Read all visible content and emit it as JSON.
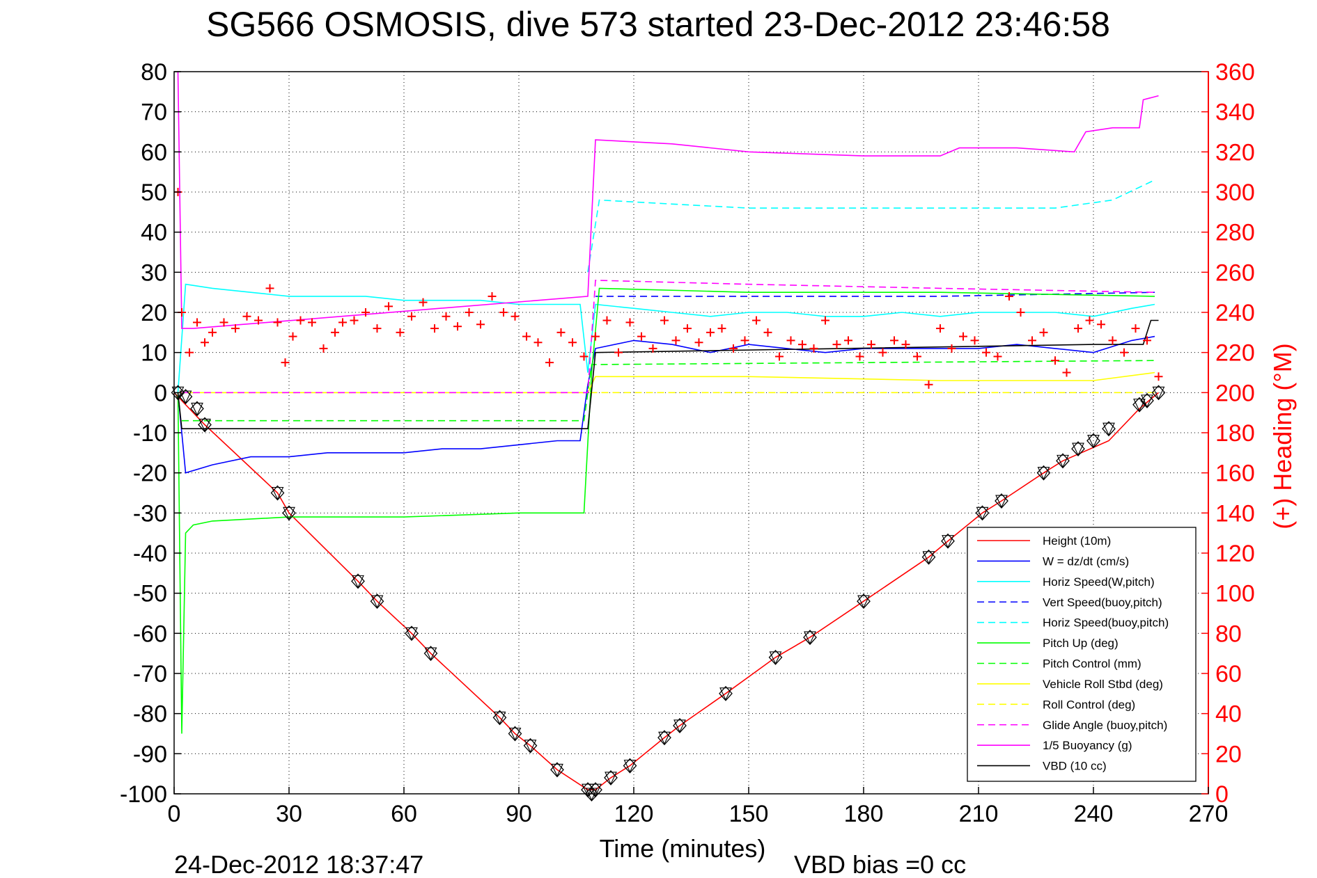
{
  "chart_data": {
    "type": "line",
    "title": "SG566 OSMOSIS, dive 573 started 23-Dec-2012 23:46:58",
    "xlabel": "Time (minutes)",
    "ylabel_right": "(+) Heading (°M)",
    "xlim": [
      0,
      270
    ],
    "ylim": [
      -100,
      80
    ],
    "ylim_right": [
      0,
      360
    ],
    "x_ticks": [
      0,
      30,
      60,
      90,
      120,
      150,
      180,
      210,
      240,
      270
    ],
    "y_ticks": [
      80,
      70,
      60,
      50,
      40,
      30,
      20,
      10,
      0,
      -10,
      -20,
      -30,
      -40,
      -50,
      -60,
      -70,
      -80,
      -90,
      -100
    ],
    "y_right_ticks": [
      360,
      340,
      320,
      300,
      280,
      260,
      240,
      220,
      200,
      180,
      160,
      140,
      120,
      100,
      80,
      60,
      40,
      20,
      0
    ],
    "grid": true,
    "legend_position": "bottom-right",
    "footer_left": "24-Dec-2012 18:37:47",
    "footer_right": "VBD bias =0 cc",
    "colors": {
      "height": "#ff0000",
      "w": "#0000ff",
      "horiz_speed_w": "#00ffff",
      "vert_speed_buoy": "#0000ff",
      "horiz_speed_buoy": "#00ffff",
      "pitch_up": "#00ff00",
      "pitch_control": "#00ff00",
      "roll": "#ffff00",
      "roll_control": "#ffff00",
      "glide_angle": "#ff00ff",
      "buoyancy": "#ff00ff",
      "vbd": "#000000",
      "heading": "#ff0000",
      "right_axis": "#ff0000"
    },
    "series": [
      {
        "name": "Height (10m)",
        "style": "solid",
        "color": "#ff0000",
        "x": [
          0,
          8,
          27,
          30,
          48,
          53,
          62,
          67,
          85,
          89,
          93,
          100,
          108,
          110,
          114,
          119,
          128,
          132,
          144,
          157,
          166,
          180,
          197,
          202,
          211,
          216,
          227,
          232,
          244,
          252,
          257
        ],
        "y": [
          0,
          -8,
          -25,
          -30,
          -47,
          -52,
          -60,
          -65,
          -81,
          -85,
          -88,
          -94,
          -99,
          -99,
          -96,
          -93,
          -86,
          -83,
          -75,
          -66,
          -61,
          -52,
          -41,
          -37,
          -30,
          -27,
          -20,
          -17,
          -12,
          -4,
          0
        ]
      },
      {
        "name": "W = dz/dt (cm/s)",
        "style": "solid",
        "color": "#0000ff",
        "x": [
          1,
          3,
          10,
          20,
          30,
          40,
          50,
          60,
          70,
          80,
          90,
          100,
          106,
          108,
          110,
          120,
          130,
          140,
          150,
          160,
          170,
          180,
          190,
          200,
          210,
          220,
          230,
          240,
          250,
          256
        ],
        "y": [
          0,
          -20,
          -18,
          -16,
          -16,
          -15,
          -15,
          -15,
          -14,
          -14,
          -13,
          -12,
          -12,
          2,
          11,
          13,
          12,
          10,
          12,
          11,
          10,
          11,
          11,
          11,
          11,
          12,
          11,
          10,
          13,
          14
        ]
      },
      {
        "name": "Horiz Speed(W,pitch)",
        "style": "solid",
        "color": "#00ffff",
        "x": [
          1,
          3,
          10,
          20,
          30,
          40,
          50,
          60,
          70,
          80,
          90,
          100,
          106,
          108,
          110,
          120,
          130,
          140,
          150,
          160,
          170,
          180,
          190,
          200,
          210,
          220,
          230,
          240,
          250,
          256
        ],
        "y": [
          0,
          27,
          26,
          25,
          24,
          24,
          24,
          23,
          23,
          23,
          22,
          22,
          22,
          5,
          22,
          21,
          20,
          19,
          20,
          20,
          19,
          19,
          20,
          19,
          20,
          20,
          20,
          19,
          21,
          22
        ]
      },
      {
        "name": "Vert Speed(buoy,pitch)",
        "style": "dashed",
        "color": "#0000ff",
        "x": [
          110,
          150,
          200,
          256
        ],
        "y": [
          24,
          24,
          24,
          25
        ]
      },
      {
        "name": "Horiz Speed(buoy,pitch)",
        "style": "dashed",
        "color": "#00ffff",
        "x": [
          108,
          111,
          130,
          150,
          180,
          200,
          230,
          245,
          256
        ],
        "y": [
          30,
          48,
          47,
          46,
          46,
          46,
          46,
          48,
          53
        ]
      },
      {
        "name": "Pitch Up (deg)",
        "style": "solid",
        "color": "#00ff00",
        "x": [
          1,
          2,
          3,
          5,
          10,
          30,
          60,
          90,
          107,
          109,
          111,
          150,
          200,
          256
        ],
        "y": [
          0,
          -85,
          -35,
          -33,
          -32,
          -31,
          -31,
          -30,
          -30,
          5,
          26,
          25,
          25,
          24
        ]
      },
      {
        "name": "Pitch Control (mm)",
        "style": "dashed",
        "color": "#00ff00",
        "x": [
          2,
          107,
          109,
          256
        ],
        "y": [
          -7,
          -7,
          7,
          8
        ]
      },
      {
        "name": "Vehicle Roll Stbd (deg)",
        "style": "solid",
        "color": "#ffff00",
        "x": [
          1,
          10,
          50,
          100,
          108,
          110,
          150,
          200,
          240,
          256
        ],
        "y": [
          0,
          0,
          0,
          0,
          0,
          4,
          4,
          3,
          3,
          5
        ]
      },
      {
        "name": "Roll Control (deg)",
        "style": "dashed",
        "color": "#ffff00",
        "x": [
          1,
          108,
          110,
          256
        ],
        "y": [
          0,
          0,
          0,
          0
        ]
      },
      {
        "name": "Glide Angle (buoy,pitch)",
        "style": "dashed",
        "color": "#ff00ff",
        "x": [
          2,
          108,
          110,
          150,
          200,
          256
        ],
        "y": [
          0,
          0,
          28,
          27,
          26,
          25
        ]
      },
      {
        "name": "1/5 Buoyancy (g)",
        "style": "solid",
        "color": "#ff00ff",
        "x": [
          1,
          2,
          5,
          108,
          110,
          130,
          150,
          180,
          200,
          205,
          220,
          235,
          238,
          245,
          252,
          253,
          257
        ],
        "y": [
          80,
          16,
          16,
          24,
          63,
          62,
          60,
          59,
          59,
          61,
          61,
          60,
          65,
          66,
          66,
          73,
          74
        ]
      },
      {
        "name": "VBD (10 cc)",
        "style": "solid",
        "color": "#000000",
        "x": [
          1,
          2,
          108,
          110,
          240,
          253,
          255,
          257
        ],
        "y": [
          0,
          -9,
          -9,
          10,
          12,
          12,
          18,
          18
        ]
      }
    ],
    "heading_series": {
      "name": "(+) Heading",
      "marker": "+",
      "color": "#ff0000",
      "x": [
        1,
        2,
        4,
        6,
        8,
        10,
        13,
        16,
        19,
        22,
        25,
        27,
        29,
        31,
        33,
        36,
        39,
        42,
        44,
        47,
        50,
        53,
        56,
        59,
        62,
        65,
        68,
        71,
        74,
        77,
        80,
        83,
        86,
        89,
        92,
        95,
        98,
        101,
        104,
        107,
        110,
        113,
        116,
        119,
        122,
        125,
        128,
        131,
        134,
        137,
        140,
        143,
        146,
        149,
        152,
        155,
        158,
        161,
        164,
        167,
        170,
        173,
        176,
        179,
        182,
        185,
        188,
        191,
        194,
        197,
        200,
        203,
        206,
        209,
        212,
        215,
        218,
        221,
        224,
        227,
        230,
        233,
        236,
        239,
        242,
        245,
        248,
        251,
        254,
        257
      ],
      "y": [
        300,
        240,
        220,
        235,
        225,
        230,
        235,
        232,
        238,
        236,
        252,
        235,
        215,
        228,
        236,
        235,
        222,
        230,
        235,
        236,
        240,
        232,
        243,
        230,
        238,
        245,
        232,
        238,
        233,
        240,
        234,
        248,
        240,
        238,
        228,
        225,
        215,
        230,
        225,
        218,
        228,
        236,
        220,
        235,
        228,
        222,
        236,
        226,
        232,
        225,
        230,
        232,
        222,
        226,
        236,
        230,
        218,
        226,
        224,
        222,
        236,
        224,
        226,
        218,
        224,
        220,
        226,
        224,
        218,
        204,
        232,
        222,
        228,
        226,
        220,
        218,
        248,
        240,
        226,
        230,
        216,
        210,
        232,
        236,
        234,
        226,
        220,
        232,
        226,
        208
      ]
    },
    "markers": {
      "name": "Height samples",
      "x": [
        1,
        3,
        6,
        8,
        27,
        30,
        48,
        53,
        62,
        67,
        85,
        89,
        93,
        100,
        108,
        109,
        110,
        114,
        119,
        128,
        132,
        144,
        157,
        166,
        180,
        197,
        202,
        211,
        216,
        227,
        232,
        236,
        240,
        244,
        252,
        254,
        257
      ],
      "y": [
        0,
        -1,
        -4,
        -8,
        -25,
        -30,
        -47,
        -52,
        -60,
        -65,
        -81,
        -85,
        -88,
        -94,
        -99,
        -100,
        -99,
        -96,
        -93,
        -86,
        -83,
        -75,
        -66,
        -61,
        -52,
        -41,
        -37,
        -30,
        -27,
        -20,
        -17,
        -14,
        -12,
        -9,
        -3,
        -2,
        0
      ]
    }
  }
}
